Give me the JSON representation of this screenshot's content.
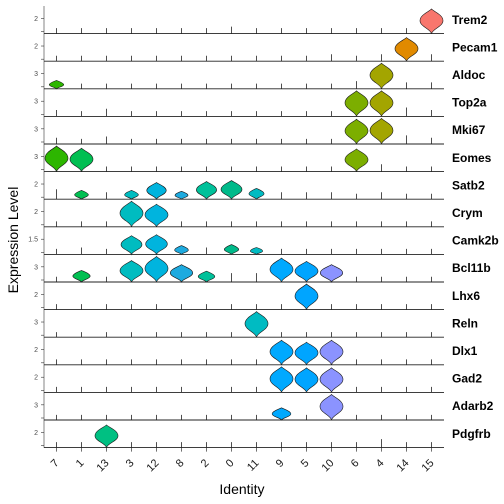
{
  "chart_data": {
    "type": "violin",
    "title": "",
    "xlabel": "Identity",
    "ylabel": "Expression Level",
    "categories": [
      "7",
      "1",
      "13",
      "3",
      "12",
      "8",
      "2",
      "0",
      "11",
      "9",
      "5",
      "10",
      "6",
      "4",
      "14",
      "15"
    ],
    "category_colors": [
      "#2DB600",
      "#01BF52",
      "#00C082",
      "#00BCC0",
      "#00B4DE",
      "#1DAADF",
      "#00C19A",
      "#00BA8A",
      "#00BBC2",
      "#00A9FF",
      "#00A5FF",
      "#8B93FF",
      "#7CAE00",
      "#A3A500",
      "#E18A00",
      "#F8766D"
    ],
    "rows": [
      {
        "gene": "Trem2",
        "tick": "2",
        "values": [
          0.1,
          0.1,
          0.1,
          0.1,
          0.1,
          0.1,
          0.1,
          0.2,
          0.1,
          0.1,
          0.1,
          0.1,
          0.1,
          0.1,
          0.1,
          2.4
        ]
      },
      {
        "gene": "Pecam1",
        "tick": "2",
        "values": [
          0.1,
          0.1,
          0.1,
          0.1,
          0.1,
          0.1,
          0.1,
          0.1,
          0.1,
          0.1,
          0.1,
          0.2,
          0.1,
          0.2,
          2.3,
          0.2
        ]
      },
      {
        "gene": "Aldoc",
        "tick": "3",
        "values": [
          0.9,
          0.1,
          0.1,
          0.1,
          0.1,
          0.1,
          0.1,
          0.1,
          0.1,
          0.1,
          0.1,
          0.1,
          0.3,
          3.0,
          0.2,
          0.2
        ]
      },
      {
        "gene": "Top2a",
        "tick": "3",
        "values": [
          0.2,
          0.1,
          0.3,
          0.1,
          0.1,
          0.1,
          0.1,
          0.1,
          0.1,
          0.1,
          0.1,
          0.1,
          3.0,
          3.0,
          0.4,
          0.2
        ]
      },
      {
        "gene": "Mki67",
        "tick": "3",
        "values": [
          0.2,
          0.1,
          0.3,
          0.1,
          0.1,
          0.1,
          0.1,
          0.1,
          0.1,
          0.1,
          0.1,
          0.1,
          3.1,
          3.2,
          0.4,
          0.2
        ]
      },
      {
        "gene": "Eomes",
        "tick": "3",
        "values": [
          3.3,
          3.0,
          0.1,
          0.1,
          0.1,
          0.1,
          0.1,
          0.1,
          0.1,
          0.1,
          0.1,
          0.1,
          2.9,
          0.3,
          0.1,
          0.1
        ]
      },
      {
        "gene": "Satb2",
        "tick": "2",
        "values": [
          0.4,
          0.8,
          0.2,
          0.8,
          1.6,
          0.7,
          1.7,
          1.8,
          1.0,
          0.2,
          0.2,
          0.2,
          0.1,
          0.2,
          0.1,
          0.1
        ]
      },
      {
        "gene": "Crym",
        "tick": "2",
        "values": [
          0.1,
          0.1,
          0.1,
          2.5,
          2.2,
          0.1,
          0.1,
          0.1,
          0.1,
          0.1,
          0.1,
          0.1,
          0.1,
          0.1,
          0.1,
          0.1
        ]
      },
      {
        "gene": "Camk2b",
        "tick": "1.5",
        "values": [
          0.1,
          0.2,
          0.1,
          1.8,
          1.9,
          0.8,
          0.2,
          0.9,
          0.6,
          0.1,
          0.1,
          0.1,
          0.1,
          0.1,
          0.1,
          0.1
        ]
      },
      {
        "gene": "Bcl11b",
        "tick": "3",
        "values": [
          0.1,
          1.3,
          0.1,
          2.5,
          3.0,
          2.0,
          1.2,
          0.4,
          0.4,
          2.8,
          2.4,
          2.0,
          0.1,
          0.1,
          0.1,
          0.1
        ]
      },
      {
        "gene": "Lhx6",
        "tick": "2",
        "values": [
          0.1,
          0.1,
          0.1,
          0.1,
          0.1,
          0.1,
          0.1,
          0.1,
          0.1,
          0.1,
          2.5,
          0.1,
          0.1,
          0.1,
          0.1,
          0.1
        ]
      },
      {
        "gene": "Reln",
        "tick": "3",
        "values": [
          0.1,
          0.1,
          0.1,
          0.1,
          0.1,
          0.1,
          0.1,
          0.1,
          3.3,
          0.1,
          0.1,
          0.1,
          0.1,
          0.1,
          0.1,
          0.1
        ]
      },
      {
        "gene": "Dlx1",
        "tick": "2",
        "values": [
          0.1,
          0.1,
          0.1,
          0.1,
          0.1,
          0.1,
          0.1,
          0.1,
          0.1,
          2.4,
          2.2,
          2.4,
          0.1,
          0.1,
          0.1,
          0.1
        ]
      },
      {
        "gene": "Gad2",
        "tick": "2",
        "values": [
          0.1,
          0.1,
          0.1,
          0.1,
          0.1,
          0.1,
          0.1,
          0.1,
          0.1,
          2.5,
          2.4,
          2.4,
          0.1,
          0.1,
          0.1,
          0.1
        ]
      },
      {
        "gene": "Adarb2",
        "tick": "3",
        "values": [
          0.1,
          0.1,
          0.1,
          0.1,
          0.1,
          0.1,
          0.1,
          0.1,
          0.1,
          1.5,
          0.1,
          3.3,
          0.1,
          0.1,
          0.1,
          0.1
        ]
      },
      {
        "gene": "Pdgfrb",
        "tick": "2",
        "values": [
          0.1,
          0.1,
          2.2,
          0.1,
          0.1,
          0.1,
          0.1,
          0.1,
          0.1,
          0.1,
          0.1,
          0.1,
          0.1,
          0.3,
          0.1,
          0.1
        ]
      }
    ]
  }
}
